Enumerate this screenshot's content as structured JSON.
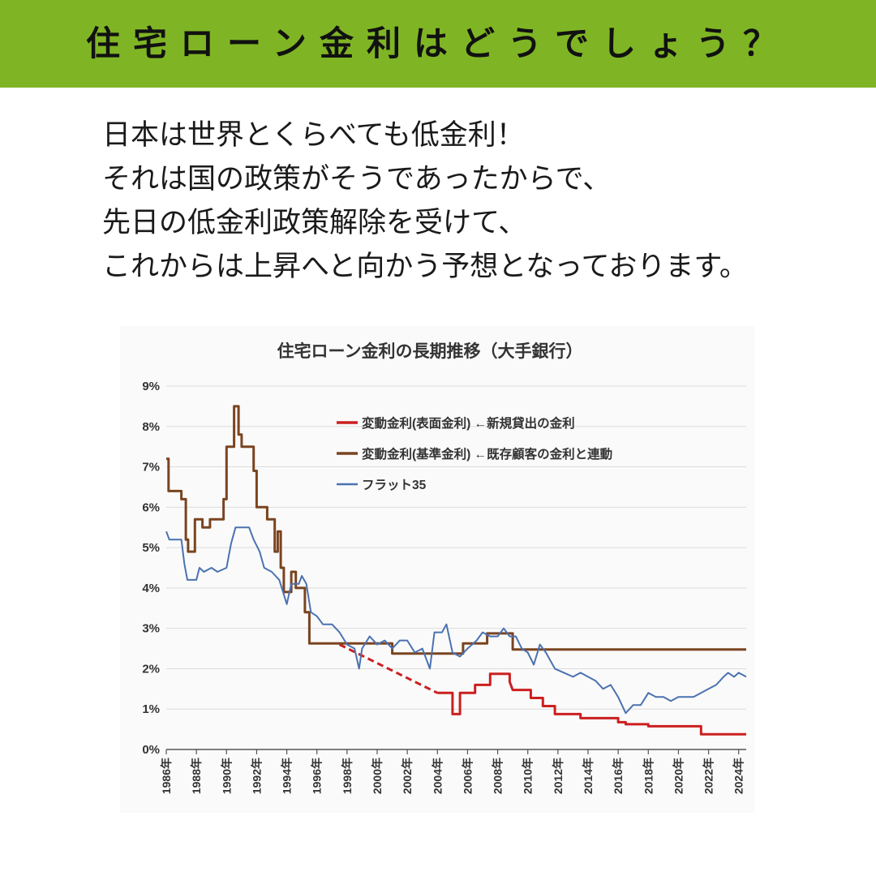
{
  "banner": {
    "title": "住宅ローン金利はどうでしょう？",
    "color": "#7fb524"
  },
  "intro": {
    "lines": [
      "日本は世界とくらべても低金利！",
      "それは国の政策がそうであったからで、",
      "先日の低金利政策解除を受けて、",
      "これからは上昇へと向かう予想となっております。"
    ]
  },
  "chart_data": {
    "type": "line",
    "title": "住宅ローン金利の長期推移（大手銀行）",
    "xlabel": "",
    "ylabel": "",
    "xlim": [
      1986,
      2024.5
    ],
    "ylim": [
      0,
      9
    ],
    "yticks": [
      0,
      1,
      2,
      3,
      4,
      5,
      6,
      7,
      8,
      9
    ],
    "ytick_labels": [
      "0%",
      "1%",
      "2%",
      "3%",
      "4%",
      "5%",
      "6%",
      "7%",
      "8%",
      "9%"
    ],
    "xticks": [
      1986,
      1988,
      1990,
      1992,
      1994,
      1996,
      1998,
      2000,
      2002,
      2004,
      2006,
      2008,
      2010,
      2012,
      2014,
      2016,
      2018,
      2020,
      2022,
      2024
    ],
    "xtick_labels": [
      "1986年",
      "1988年",
      "1990年",
      "1992年",
      "1994年",
      "1996年",
      "1998年",
      "2000年",
      "2002年",
      "2004年",
      "2006年",
      "2008年",
      "2010年",
      "2012年",
      "2014年",
      "2016年",
      "2018年",
      "2020年",
      "2022年",
      "2024年"
    ],
    "grid": true,
    "legend_position": "top-right",
    "series": [
      {
        "name": "変動金利(表面金利) ←新規貸出の金利",
        "color": "#cc1f1f",
        "segments": [
          {
            "style": "dashed",
            "points": [
              [
                1997.5,
                2.6
              ],
              [
                2004.0,
                1.4
              ]
            ]
          },
          {
            "style": "solid",
            "points": [
              [
                2004.0,
                1.4
              ],
              [
                2005.0,
                1.4
              ],
              [
                2005.0,
                0.875
              ],
              [
                2005.5,
                0.875
              ],
              [
                2005.5,
                1.4
              ],
              [
                2006.5,
                1.4
              ],
              [
                2006.5,
                1.6
              ],
              [
                2007.5,
                1.6
              ],
              [
                2007.5,
                1.875
              ],
              [
                2008.8,
                1.875
              ],
              [
                2008.8,
                1.675
              ],
              [
                2009.0,
                1.475
              ],
              [
                2010.2,
                1.475
              ],
              [
                2010.2,
                1.275
              ],
              [
                2011.0,
                1.275
              ],
              [
                2011.0,
                1.075
              ],
              [
                2011.8,
                1.075
              ],
              [
                2011.8,
                0.875
              ],
              [
                2013.5,
                0.875
              ],
              [
                2013.5,
                0.775
              ],
              [
                2016.0,
                0.775
              ],
              [
                2016.0,
                0.675
              ],
              [
                2016.5,
                0.675
              ],
              [
                2016.5,
                0.625
              ],
              [
                2018.0,
                0.625
              ],
              [
                2018.0,
                0.575
              ],
              [
                2021.5,
                0.575
              ],
              [
                2021.5,
                0.375
              ],
              [
                2024.5,
                0.375
              ]
            ]
          }
        ]
      },
      {
        "name": "変動金利(基準金利) ←既存顧客の金利と連動",
        "color": "#7a4420",
        "segments": [
          {
            "style": "solid",
            "points": [
              [
                1986.0,
                7.2
              ],
              [
                1986.15,
                7.2
              ],
              [
                1986.15,
                6.4
              ],
              [
                1987.0,
                6.4
              ],
              [
                1987.0,
                6.2
              ],
              [
                1987.3,
                6.2
              ],
              [
                1987.3,
                5.2
              ],
              [
                1987.45,
                5.2
              ],
              [
                1987.45,
                4.9
              ],
              [
                1987.9,
                4.9
              ],
              [
                1987.9,
                5.7
              ],
              [
                1988.4,
                5.7
              ],
              [
                1988.4,
                5.5
              ],
              [
                1988.9,
                5.5
              ],
              [
                1988.9,
                5.7
              ],
              [
                1989.8,
                5.7
              ],
              [
                1989.8,
                6.2
              ],
              [
                1990.0,
                6.2
              ],
              [
                1990.0,
                7.5
              ],
              [
                1990.5,
                7.5
              ],
              [
                1990.5,
                8.5
              ],
              [
                1990.8,
                8.5
              ],
              [
                1990.8,
                7.8
              ],
              [
                1991.0,
                7.8
              ],
              [
                1991.0,
                7.5
              ],
              [
                1991.8,
                7.5
              ],
              [
                1991.8,
                6.9
              ],
              [
                1992.0,
                6.9
              ],
              [
                1992.0,
                6.0
              ],
              [
                1992.7,
                6.0
              ],
              [
                1992.7,
                5.7
              ],
              [
                1993.2,
                5.7
              ],
              [
                1993.2,
                4.9
              ],
              [
                1993.4,
                4.9
              ],
              [
                1993.4,
                5.4
              ],
              [
                1993.6,
                5.4
              ],
              [
                1993.6,
                4.5
              ],
              [
                1993.8,
                4.5
              ],
              [
                1993.8,
                3.9
              ],
              [
                1994.3,
                3.9
              ],
              [
                1994.3,
                4.4
              ],
              [
                1994.6,
                4.4
              ],
              [
                1994.6,
                4.0
              ],
              [
                1995.2,
                4.0
              ],
              [
                1995.2,
                3.4
              ],
              [
                1995.5,
                3.4
              ],
              [
                1995.5,
                2.625
              ],
              [
                2001.0,
                2.625
              ],
              [
                2001.0,
                2.375
              ],
              [
                2005.7,
                2.375
              ],
              [
                2005.7,
                2.625
              ],
              [
                2007.3,
                2.625
              ],
              [
                2007.3,
                2.875
              ],
              [
                2009.0,
                2.875
              ],
              [
                2009.0,
                2.475
              ],
              [
                2024.5,
                2.475
              ]
            ]
          }
        ]
      },
      {
        "name": "フラット35",
        "color": "#4a72b0",
        "segments": [
          {
            "style": "solid",
            "points": [
              [
                1986.0,
                5.4
              ],
              [
                1986.2,
                5.2
              ],
              [
                1987.0,
                5.2
              ],
              [
                1987.2,
                4.6
              ],
              [
                1987.4,
                4.2
              ],
              [
                1988.0,
                4.2
              ],
              [
                1988.2,
                4.5
              ],
              [
                1988.5,
                4.4
              ],
              [
                1989.0,
                4.5
              ],
              [
                1989.4,
                4.4
              ],
              [
                1990.0,
                4.5
              ],
              [
                1990.3,
                5.1
              ],
              [
                1990.6,
                5.5
              ],
              [
                1991.5,
                5.5
              ],
              [
                1991.8,
                5.2
              ],
              [
                1992.2,
                4.9
              ],
              [
                1992.5,
                4.5
              ],
              [
                1993.0,
                4.4
              ],
              [
                1993.5,
                4.2
              ],
              [
                1994.0,
                3.6
              ],
              [
                1994.3,
                4.1
              ],
              [
                1994.8,
                4.1
              ],
              [
                1995.0,
                4.3
              ],
              [
                1995.3,
                4.1
              ],
              [
                1995.6,
                3.4
              ],
              [
                1996.0,
                3.3
              ],
              [
                1996.4,
                3.1
              ],
              [
                1997.0,
                3.1
              ],
              [
                1997.5,
                2.9
              ],
              [
                1998.0,
                2.6
              ],
              [
                1998.5,
                2.5
              ],
              [
                1998.8,
                2.0
              ],
              [
                1999.0,
                2.5
              ],
              [
                1999.5,
                2.8
              ],
              [
                2000.0,
                2.6
              ],
              [
                2000.5,
                2.7
              ],
              [
                2001.0,
                2.5
              ],
              [
                2001.5,
                2.7
              ],
              [
                2002.0,
                2.7
              ],
              [
                2002.5,
                2.4
              ],
              [
                2003.0,
                2.5
              ],
              [
                2003.5,
                2.0
              ],
              [
                2003.8,
                2.9
              ],
              [
                2004.3,
                2.9
              ],
              [
                2004.6,
                3.1
              ],
              [
                2005.0,
                2.4
              ],
              [
                2005.5,
                2.3
              ],
              [
                2006.0,
                2.5
              ],
              [
                2006.6,
                2.7
              ],
              [
                2007.0,
                2.9
              ],
              [
                2007.5,
                2.8
              ],
              [
                2008.0,
                2.8
              ],
              [
                2008.4,
                3.0
              ],
              [
                2008.8,
                2.8
              ],
              [
                2009.2,
                2.8
              ],
              [
                2009.6,
                2.5
              ],
              [
                2010.0,
                2.4
              ],
              [
                2010.4,
                2.1
              ],
              [
                2010.8,
                2.6
              ],
              [
                2011.2,
                2.4
              ],
              [
                2011.8,
                2.0
              ],
              [
                2012.4,
                1.9
              ],
              [
                2013.0,
                1.8
              ],
              [
                2013.5,
                1.9
              ],
              [
                2014.0,
                1.8
              ],
              [
                2014.5,
                1.7
              ],
              [
                2015.0,
                1.5
              ],
              [
                2015.5,
                1.6
              ],
              [
                2016.0,
                1.3
              ],
              [
                2016.5,
                0.9
              ],
              [
                2017.0,
                1.1
              ],
              [
                2017.5,
                1.1
              ],
              [
                2018.0,
                1.4
              ],
              [
                2018.5,
                1.3
              ],
              [
                2019.0,
                1.3
              ],
              [
                2019.5,
                1.2
              ],
              [
                2020.0,
                1.3
              ],
              [
                2020.5,
                1.3
              ],
              [
                2021.0,
                1.3
              ],
              [
                2021.5,
                1.4
              ],
              [
                2022.0,
                1.5
              ],
              [
                2022.5,
                1.6
              ],
              [
                2023.0,
                1.8
              ],
              [
                2023.3,
                1.9
              ],
              [
                2023.7,
                1.8
              ],
              [
                2024.0,
                1.9
              ],
              [
                2024.5,
                1.8
              ]
            ]
          }
        ]
      }
    ]
  }
}
